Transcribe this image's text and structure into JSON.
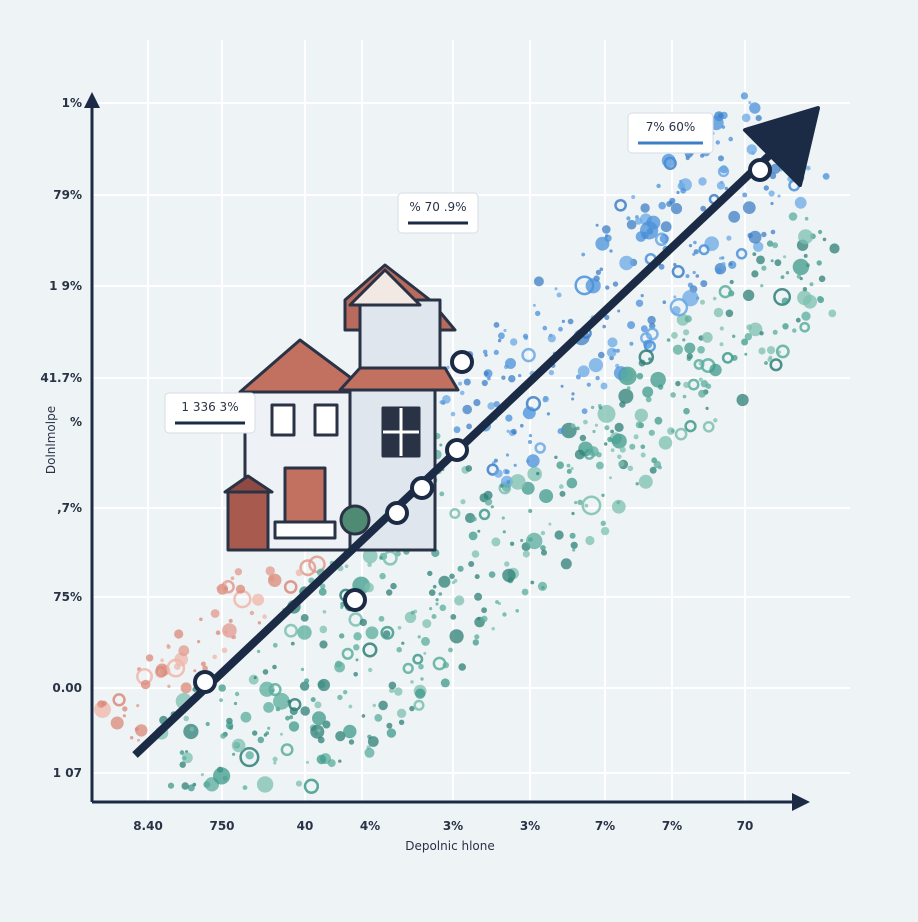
{
  "figure": {
    "y_axis_labels": [
      "1%",
      "79%",
      "1 9%",
      "41.7%",
      "%",
      ",7%",
      "75%",
      "0.00",
      "1 07"
    ],
    "x_axis_labels": [
      "8.40",
      "750",
      "40",
      "4%",
      "3%",
      "3%",
      "7%",
      "7%",
      "70"
    ],
    "x_axis_title": "Depolnic hlone",
    "y_axis_title": "Dolnlmolpe",
    "callouts": [
      "1 336 3%",
      "% 70 .9%",
      "7% 60%"
    ]
  }
}
